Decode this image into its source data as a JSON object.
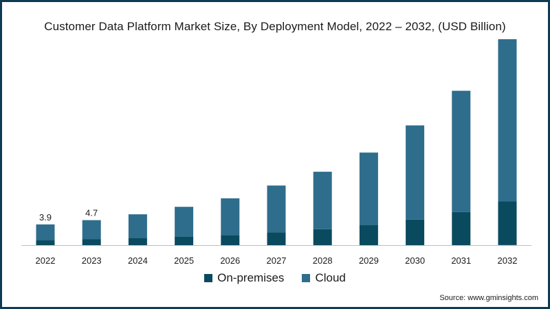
{
  "title": "Customer Data Platform Market Size, By Deployment Model, 2022 – 2032, (USD Billion)",
  "source": "Source: www.gminsights.com",
  "colors": {
    "onprem": "#0a4a5f",
    "cloud": "#2f6d8c",
    "axis": "#bfbfbf"
  },
  "chart_data": {
    "type": "bar",
    "stacked": true,
    "categories": [
      "2022",
      "2023",
      "2024",
      "2025",
      "2026",
      "2027",
      "2028",
      "2029",
      "2030",
      "2031",
      "2032"
    ],
    "series": [
      {
        "name": "On-premises",
        "values": [
          0.9,
          1.1,
          1.3,
          1.6,
          1.9,
          2.4,
          3.0,
          3.8,
          4.8,
          6.2,
          8.2
        ]
      },
      {
        "name": "Cloud",
        "values": [
          3.0,
          3.6,
          4.5,
          5.6,
          6.9,
          8.8,
          10.8,
          13.6,
          17.7,
          22.8,
          30.5
        ]
      }
    ],
    "totals_labels": [
      "3.9",
      "4.7",
      "",
      "",
      "",
      "",
      "",
      "",
      "",
      "",
      ""
    ],
    "ylim": [
      0,
      40
    ],
    "legend_position": "bottom",
    "grid": false
  }
}
